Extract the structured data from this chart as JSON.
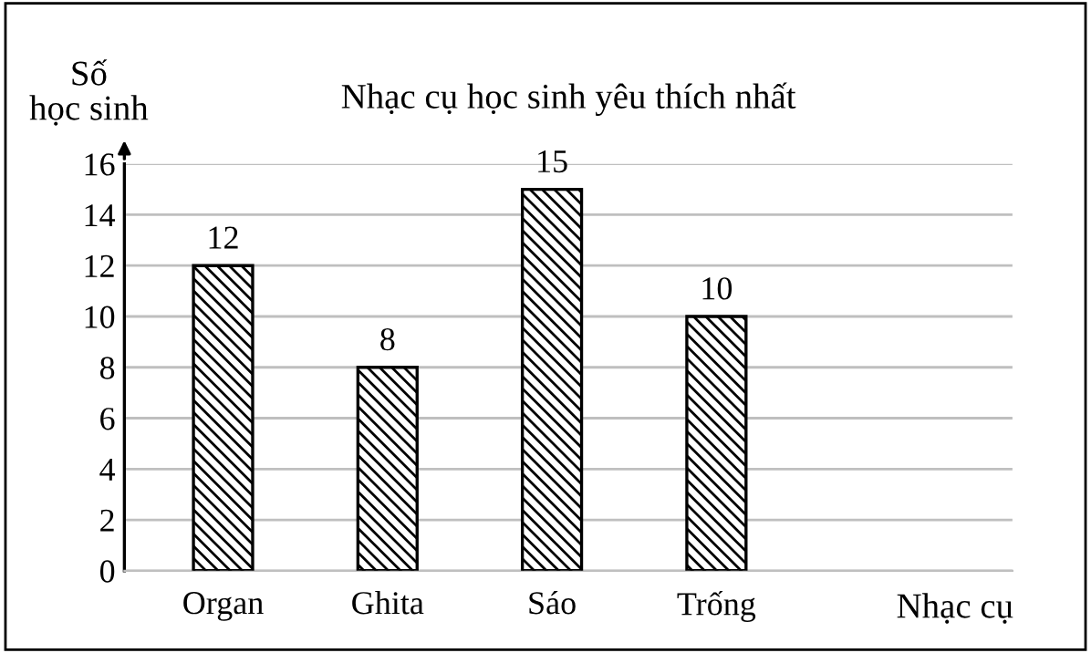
{
  "chart_data": {
    "type": "bar",
    "title": "Nhạc cụ học sinh yêu thích nhất",
    "xlabel": "Nhạc cụ",
    "ylabel": "Số\nhọc sinh",
    "categories": [
      "Organ",
      "Ghita",
      "Sáo",
      "Trống"
    ],
    "values": [
      12,
      8,
      15,
      10
    ],
    "color": "#000000",
    "ylim": [
      0,
      16
    ],
    "yticks": [
      0,
      2,
      4,
      6,
      8,
      10,
      12,
      14,
      16
    ],
    "grid": "y",
    "data_labels": true
  }
}
